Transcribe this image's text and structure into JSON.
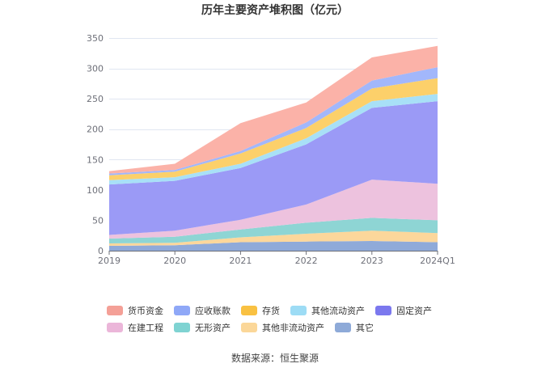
{
  "chart_data": {
    "type": "area",
    "stacked": true,
    "title": "历年主要资产堆积图（亿元）",
    "categories": [
      "2019",
      "2020",
      "2021",
      "2022",
      "2023",
      "2024Q1"
    ],
    "ylim": [
      0,
      350
    ],
    "yticks": [
      0,
      50,
      100,
      150,
      200,
      250,
      300,
      350
    ],
    "grid": true,
    "legend_position": "bottom",
    "series": [
      {
        "name": "其它",
        "color": "#8faad9",
        "values": [
          8,
          9,
          14,
          15,
          16,
          14
        ]
      },
      {
        "name": "其他非流动资产",
        "color": "#fcd79b",
        "values": [
          4,
          4,
          8,
          13,
          17,
          15
        ]
      },
      {
        "name": "无形资产",
        "color": "#8ed5d4",
        "values": [
          8,
          10,
          13,
          18,
          21,
          21
        ]
      },
      {
        "name": "在建工程",
        "color": "#edc2de",
        "values": [
          6,
          10,
          16,
          30,
          63,
          60
        ]
      },
      {
        "name": "固定资产",
        "color": "#9b9af6",
        "values": [
          83,
          82,
          85,
          99,
          118,
          136
        ]
      },
      {
        "name": "其他流动资产",
        "color": "#a8e0f7",
        "values": [
          7,
          6,
          7,
          10,
          11,
          12
        ]
      },
      {
        "name": "存货",
        "color": "#fcd06a",
        "values": [
          8,
          9,
          17,
          17,
          21,
          26
        ]
      },
      {
        "name": "应收账款",
        "color": "#a2b7fb",
        "values": [
          3,
          3,
          4,
          9,
          13,
          18
        ]
      },
      {
        "name": "货币资金",
        "color": "#fbb2a8",
        "values": [
          4,
          10,
          46,
          33,
          38,
          35
        ]
      }
    ]
  },
  "legend_order": [
    "货币资金",
    "应收账款",
    "存货",
    "其他流动资产",
    "固定资产",
    "在建工程",
    "无形资产",
    "其他非流动资产",
    "其它"
  ],
  "legend_colors": [
    "#f4a097",
    "#8fa8f7",
    "#f9c142",
    "#9ddcf5",
    "#7b78ee",
    "#ebb6d9",
    "#7fd3d2",
    "#fbd799",
    "#8eaad8"
  ],
  "source_text": "数据来源：恒生聚源"
}
